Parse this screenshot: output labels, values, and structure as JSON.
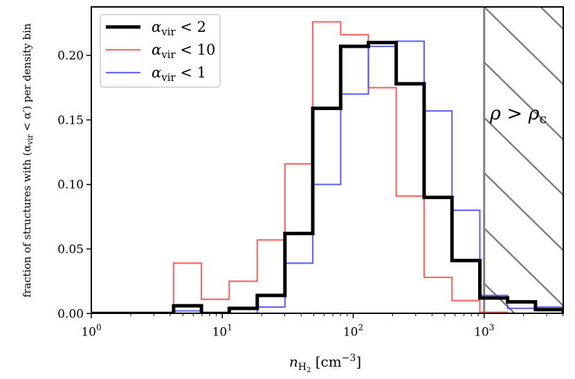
{
  "chart_data": {
    "type": "histogram",
    "xscale": "log",
    "xlim": [
      1,
      4018
    ],
    "ylim": [
      0,
      0.235
    ],
    "xlabel": {
      "base": "n",
      "sub": "H",
      "subsub": "2",
      "unit": " [cm",
      "exp": "−3",
      "close": "]"
    },
    "ylabel": "fraction of structures with (α",
    "ylabel_sub": "vir",
    "ylabel_rest": " < α′) per density bin",
    "yticks": [
      0.0,
      0.05,
      0.1,
      0.15,
      0.2
    ],
    "ytick_labels": [
      "0.00",
      "0.05",
      "0.10",
      "0.15",
      "0.20"
    ],
    "xticks": [
      1,
      10,
      100,
      1000
    ],
    "xtick_labels": [
      {
        "base": "10",
        "exp": "0"
      },
      {
        "base": "10",
        "exp": "1"
      },
      {
        "base": "10",
        "exp": "2"
      },
      {
        "base": "10",
        "exp": "3"
      }
    ],
    "bin_edges": [
      4.25,
      6.93,
      11.3,
      18.5,
      30.1,
      49.1,
      80.2,
      130.7,
      213,
      348,
      568,
      927,
      1510,
      2466,
      4018
    ],
    "series": [
      {
        "name": "α_vir < 10",
        "label": "α",
        "sub": "vir",
        "rest": " < 10",
        "color": "#ff4b4b",
        "width": 2.2,
        "values": [
          0.039,
          0.011,
          0.025,
          0.057,
          0.116,
          0.226,
          0.216,
          0.175,
          0.091,
          0.028,
          0.01,
          0.001,
          0.0,
          0.0
        ]
      },
      {
        "name": "α_vir < 1",
        "label": "α",
        "sub": "vir",
        "rest": " < 1",
        "color": "#4b4bff",
        "width": 2.2,
        "values": [
          0.002,
          0.0,
          0.0,
          0.005,
          0.039,
          0.1,
          0.17,
          0.207,
          0.211,
          0.157,
          0.08,
          0.014,
          0.004,
          0.005
        ]
      },
      {
        "name": "α_vir < 2",
        "label": "α",
        "sub": "vir",
        "rest": " < 2",
        "color": "#000000",
        "width": 5,
        "values": [
          0.006,
          0.0,
          0.004,
          0.014,
          0.062,
          0.159,
          0.207,
          0.21,
          0.178,
          0.09,
          0.041,
          0.012,
          0.009,
          0.003
        ]
      }
    ],
    "legend_order": [
      2,
      0,
      1
    ],
    "legend_placement": "top-left",
    "shaded_region": {
      "from": 1000,
      "label": "ρ > ρ",
      "label_sub": "c",
      "color": "#808080",
      "pattern": "diagonal-hatch"
    },
    "grid": false
  }
}
